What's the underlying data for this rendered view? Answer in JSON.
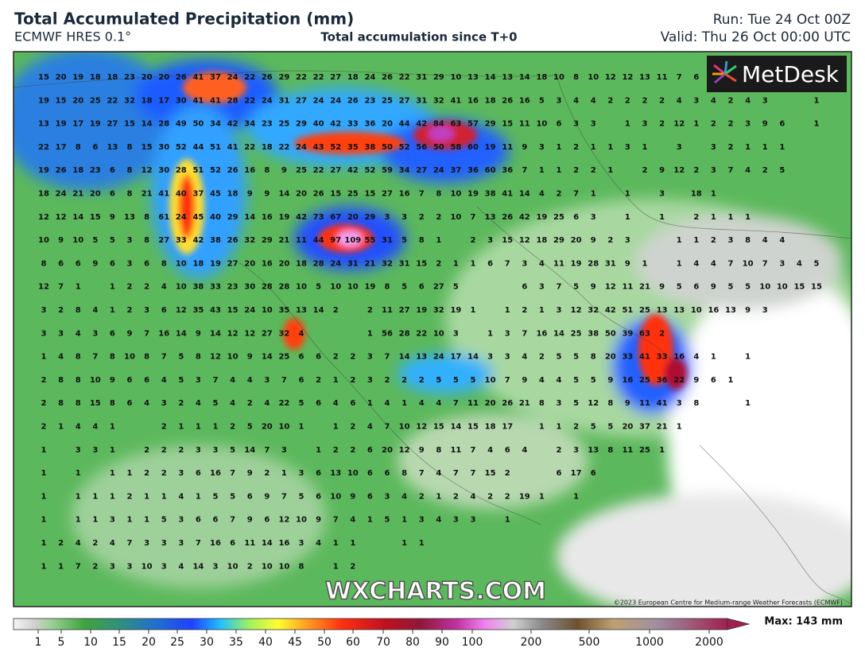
{
  "header": {
    "title": "Total Accumulated Precipitation (mm)",
    "model": "ECMWF HRES 0.1°",
    "subtitle": "Total accumulation since T+0",
    "run": "Run: Tue 24 Oct 00Z",
    "valid": "Valid: Thu 26 Oct 00:00 UTC"
  },
  "logo": "MetDesk",
  "watermark": "WXCHARTS.COM",
  "copyright": "©2023 European Centre for Medium-range Weather Forecasts (ECMWF)",
  "max_label": "Max: 143 mm",
  "colorbar_ticks": [
    1,
    5,
    10,
    15,
    20,
    25,
    30,
    35,
    40,
    45,
    50,
    60,
    70,
    80,
    90,
    100,
    200,
    500,
    1000,
    2000
  ],
  "grid_values": [
    [
      15,
      20,
      19,
      18,
      18,
      23,
      20,
      20,
      26,
      41,
      37,
      24,
      22,
      26,
      29,
      22,
      22,
      27,
      18,
      24,
      26,
      22,
      31,
      29,
      10,
      13,
      14,
      13,
      14,
      18,
      10,
      8,
      10,
      12,
      12,
      13,
      11,
      7,
      6
    ],
    [
      19,
      15,
      20,
      25,
      22,
      32,
      18,
      17,
      30,
      41,
      41,
      28,
      22,
      24,
      31,
      27,
      24,
      24,
      26,
      23,
      25,
      27,
      31,
      32,
      41,
      16,
      18,
      26,
      16,
      5,
      3,
      4,
      4,
      2,
      2,
      2,
      2,
      4,
      3,
      4,
      2,
      4,
      3,
      null,
      null,
      1
    ],
    [
      13,
      19,
      17,
      19,
      27,
      15,
      14,
      28,
      49,
      50,
      34,
      42,
      34,
      23,
      25,
      29,
      40,
      42,
      33,
      36,
      20,
      44,
      42,
      84,
      63,
      57,
      29,
      15,
      11,
      10,
      6,
      3,
      3,
      null,
      1,
      3,
      2,
      12,
      1,
      2,
      2,
      3,
      9,
      6,
      null,
      1
    ],
    [
      22,
      17,
      8,
      6,
      13,
      8,
      15,
      30,
      52,
      44,
      51,
      41,
      22,
      18,
      22,
      24,
      43,
      52,
      35,
      38,
      50,
      52,
      56,
      50,
      58,
      60,
      19,
      11,
      9,
      3,
      1,
      2,
      1,
      1,
      3,
      1,
      null,
      3,
      null,
      3,
      2,
      1,
      1,
      1
    ],
    [
      19,
      26,
      18,
      23,
      6,
      8,
      12,
      30,
      28,
      51,
      52,
      26,
      16,
      8,
      9,
      25,
      22,
      27,
      42,
      52,
      59,
      34,
      27,
      24,
      37,
      36,
      60,
      36,
      7,
      1,
      1,
      2,
      2,
      1,
      null,
      2,
      9,
      12,
      2,
      3,
      7,
      4,
      2,
      5
    ],
    [
      18,
      24,
      21,
      20,
      6,
      8,
      21,
      41,
      40,
      37,
      45,
      18,
      9,
      9,
      14,
      20,
      26,
      15,
      25,
      15,
      27,
      16,
      7,
      8,
      10,
      19,
      38,
      41,
      14,
      4,
      2,
      7,
      1,
      null,
      1,
      null,
      3,
      null,
      18,
      1
    ],
    [
      12,
      12,
      14,
      15,
      9,
      13,
      8,
      61,
      24,
      45,
      40,
      29,
      14,
      16,
      19,
      42,
      73,
      67,
      20,
      29,
      3,
      3,
      2,
      2,
      10,
      7,
      13,
      26,
      42,
      19,
      25,
      6,
      3,
      null,
      1,
      null,
      1,
      null,
      2,
      1,
      1,
      1
    ],
    [
      10,
      9,
      10,
      5,
      5,
      3,
      8,
      27,
      33,
      42,
      38,
      26,
      32,
      29,
      21,
      11,
      44,
      97,
      109,
      55,
      31,
      5,
      8,
      1,
      null,
      2,
      3,
      15,
      12,
      18,
      29,
      20,
      9,
      2,
      3,
      null,
      null,
      1,
      1,
      2,
      3,
      8,
      4,
      4
    ],
    [
      8,
      6,
      6,
      9,
      6,
      3,
      6,
      8,
      10,
      18,
      19,
      27,
      20,
      16,
      20,
      18,
      28,
      24,
      31,
      21,
      32,
      31,
      15,
      2,
      1,
      1,
      6,
      7,
      3,
      4,
      11,
      19,
      28,
      31,
      9,
      1,
      null,
      1,
      4,
      4,
      7,
      10,
      7,
      3,
      4,
      5
    ],
    [
      12,
      7,
      1,
      null,
      1,
      2,
      2,
      4,
      10,
      38,
      33,
      23,
      30,
      28,
      28,
      10,
      5,
      10,
      10,
      19,
      8,
      5,
      6,
      27,
      5,
      null,
      null,
      null,
      6,
      3,
      7,
      5,
      9,
      12,
      11,
      21,
      9,
      5,
      6,
      9,
      5,
      5,
      10,
      10,
      15,
      15
    ],
    [
      3,
      2,
      8,
      4,
      1,
      2,
      3,
      6,
      12,
      35,
      43,
      15,
      24,
      10,
      35,
      13,
      14,
      2,
      null,
      2,
      11,
      27,
      19,
      32,
      19,
      1,
      null,
      1,
      2,
      1,
      3,
      12,
      32,
      42,
      51,
      25,
      13,
      13,
      10,
      16,
      13,
      9,
      3
    ],
    [
      3,
      3,
      4,
      3,
      6,
      9,
      7,
      16,
      14,
      9,
      14,
      12,
      12,
      27,
      32,
      4,
      null,
      null,
      null,
      1,
      56,
      28,
      22,
      10,
      3,
      null,
      1,
      3,
      7,
      16,
      14,
      25,
      38,
      50,
      39,
      63,
      2
    ],
    [
      1,
      4,
      8,
      7,
      8,
      10,
      8,
      7,
      5,
      8,
      12,
      10,
      9,
      14,
      25,
      6,
      6,
      2,
      2,
      3,
      7,
      14,
      13,
      24,
      17,
      14,
      3,
      3,
      4,
      2,
      5,
      5,
      8,
      20,
      33,
      41,
      33,
      16,
      4,
      1,
      null,
      1
    ],
    [
      2,
      8,
      8,
      10,
      9,
      6,
      6,
      4,
      5,
      3,
      7,
      4,
      4,
      3,
      7,
      6,
      2,
      1,
      2,
      3,
      2,
      2,
      2,
      5,
      5,
      5,
      10,
      7,
      9,
      4,
      4,
      5,
      5,
      9,
      16,
      25,
      36,
      22,
      9,
      6,
      1
    ],
    [
      2,
      8,
      8,
      15,
      8,
      6,
      4,
      3,
      2,
      4,
      5,
      4,
      2,
      4,
      22,
      5,
      6,
      4,
      6,
      1,
      4,
      1,
      4,
      4,
      7,
      11,
      20,
      26,
      21,
      8,
      3,
      5,
      12,
      8,
      9,
      11,
      41,
      3,
      8,
      null,
      null,
      1
    ],
    [
      2,
      1,
      4,
      4,
      1,
      null,
      null,
      2,
      1,
      1,
      1,
      2,
      5,
      20,
      10,
      1,
      null,
      1,
      2,
      4,
      7,
      10,
      12,
      15,
      14,
      15,
      18,
      17,
      null,
      1,
      1,
      2,
      5,
      5,
      20,
      37,
      21,
      1
    ],
    [
      1,
      null,
      3,
      3,
      1,
      null,
      2,
      2,
      2,
      3,
      3,
      5,
      14,
      7,
      3,
      null,
      1,
      2,
      2,
      6,
      20,
      12,
      9,
      8,
      11,
      7,
      4,
      6,
      4,
      null,
      2,
      3,
      13,
      8,
      11,
      25,
      1
    ],
    [
      1,
      null,
      1,
      null,
      1,
      1,
      2,
      2,
      3,
      6,
      16,
      7,
      9,
      2,
      1,
      3,
      6,
      13,
      10,
      6,
      6,
      8,
      7,
      4,
      7,
      7,
      15,
      2,
      null,
      null,
      6,
      17,
      6
    ],
    [
      1,
      null,
      1,
      1,
      1,
      2,
      1,
      1,
      4,
      1,
      5,
      5,
      6,
      9,
      7,
      5,
      6,
      10,
      9,
      6,
      3,
      4,
      2,
      1,
      2,
      4,
      2,
      2,
      19,
      1,
      null,
      1
    ],
    [
      1,
      null,
      1,
      1,
      3,
      1,
      1,
      5,
      3,
      6,
      6,
      7,
      9,
      6,
      12,
      10,
      9,
      7,
      4,
      1,
      5,
      1,
      3,
      4,
      3,
      3,
      null,
      1
    ],
    [
      1,
      2,
      4,
      2,
      4,
      7,
      3,
      3,
      3,
      7,
      16,
      6,
      11,
      14,
      16,
      3,
      4,
      1,
      1,
      null,
      null,
      1,
      1
    ],
    [
      1,
      1,
      7,
      2,
      3,
      3,
      10,
      3,
      4,
      14,
      3,
      10,
      2,
      10,
      10,
      8,
      null,
      1,
      2
    ]
  ]
}
